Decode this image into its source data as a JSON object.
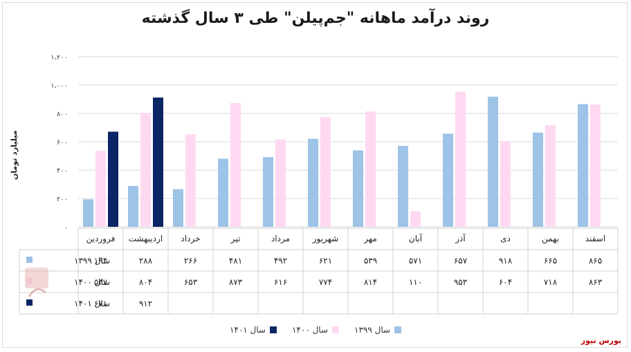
{
  "title": "روند درآمد ماهانه \"جم‌پیلن\" طی ۳ سال گذشته",
  "source": "بورس نیوز",
  "chart_data": {
    "type": "bar",
    "title": "روند درآمد ماهانه \"جم‌پیلن\" طی ۳ سال گذشته",
    "ylabel": "میلیارد تومان",
    "ylim": [
      0,
      1200
    ],
    "yticks": [
      0,
      200,
      400,
      600,
      800,
      1000,
      1200
    ],
    "ytick_labels": [
      "۰",
      "۲۰۰",
      "۴۰۰",
      "۶۰۰",
      "۸۰۰",
      "۱،۰۰۰",
      "۱،۲۰۰"
    ],
    "grid": true,
    "legend_position": "bottom",
    "categories": [
      "فروردین",
      "اردیبهشت",
      "خرداد",
      "تیر",
      "مرداد",
      "شهریور",
      "مهر",
      "آبان",
      "آذر",
      "دی",
      "بهمن",
      "اسفند"
    ],
    "series": [
      {
        "name": "سال ۱۳۹۹",
        "color": "#9dc3e6",
        "values": [
          194,
          288,
          266,
          481,
          492,
          621,
          539,
          571,
          657,
          918,
          665,
          865
        ],
        "labels": [
          "۱۹۴",
          "۲۸۸",
          "۲۶۶",
          "۴۸۱",
          "۴۹۲",
          "۶۲۱",
          "۵۳۹",
          "۵۷۱",
          "۶۵۷",
          "۹۱۸",
          "۶۶۵",
          "۸۶۵"
        ]
      },
      {
        "name": "سال ۱۴۰۰",
        "color": "#ffd9f2",
        "values": [
          537,
          804,
          653,
          873,
          616,
          774,
          814,
          110,
          953,
          604,
          718,
          863
        ],
        "labels": [
          "۵۳۷",
          "۸۰۴",
          "۶۵۳",
          "۸۷۳",
          "۶۱۶",
          "۷۷۴",
          "۸۱۴",
          "۱۱۰",
          "۹۵۳",
          "۶۰۴",
          "۷۱۸",
          "۸۶۳"
        ]
      },
      {
        "name": "سال ۱۴۰۱",
        "color": "#0c2567",
        "values": [
          671,
          912,
          null,
          null,
          null,
          null,
          null,
          null,
          null,
          null,
          null,
          null
        ],
        "labels": [
          "۶۷۱",
          "۹۱۲",
          "",
          "",
          "",
          "",
          "",
          "",
          "",
          "",
          "",
          ""
        ]
      }
    ]
  }
}
